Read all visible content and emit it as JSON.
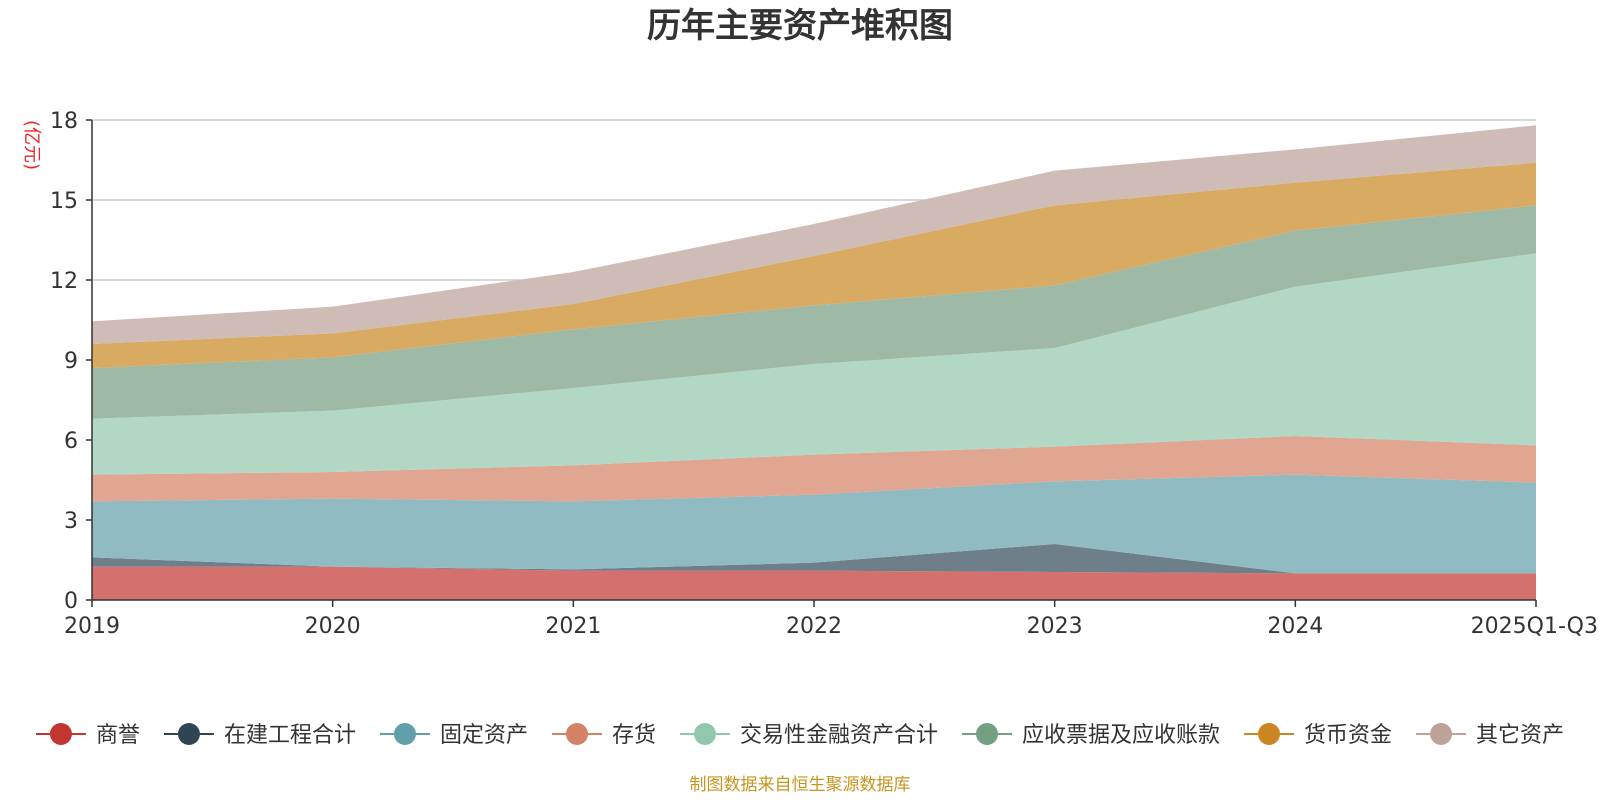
{
  "chart_data": {
    "type": "area",
    "stacked": true,
    "title": "历年主要资产堆积图",
    "ylabel": "(亿元)",
    "xlabel": "",
    "source": "制图数据来自恒生聚源数据库",
    "categories": [
      "2019",
      "2020",
      "2021",
      "2022",
      "2023",
      "2024",
      "2025Q1-Q3"
    ],
    "ylim": [
      0,
      18
    ],
    "yticks": [
      0,
      3,
      6,
      9,
      12,
      15,
      18
    ],
    "grid": true,
    "legend_position": "bottom",
    "series": [
      {
        "name": "商誉",
        "color": "#c23531",
        "fill": "#d4706d",
        "values": [
          1.25,
          1.25,
          1.1,
          1.1,
          1.05,
          1.0,
          1.0
        ]
      },
      {
        "name": "在建工程合计",
        "color": "#2f4554",
        "fill": "#6e7f8a",
        "values": [
          0.35,
          0.0,
          0.05,
          0.3,
          1.05,
          0.0,
          0.0
        ]
      },
      {
        "name": "固定资产",
        "color": "#61a0a8",
        "fill": "#90bbc2",
        "values": [
          2.1,
          2.55,
          2.55,
          2.55,
          2.35,
          3.7,
          3.4
        ]
      },
      {
        "name": "存货",
        "color": "#d48265",
        "fill": "#e1a692",
        "values": [
          1.0,
          1.0,
          1.35,
          1.5,
          1.3,
          1.45,
          1.4
        ]
      },
      {
        "name": "交易性金融资产合计",
        "color": "#91c7ae",
        "fill": "#b2d7c5",
        "values": [
          2.1,
          2.3,
          2.9,
          3.4,
          3.7,
          5.6,
          7.2
        ]
      },
      {
        "name": "应收票据及应收账款",
        "color": "#749f83",
        "fill": "#9eb9a5",
        "values": [
          1.9,
          2.0,
          2.2,
          2.2,
          2.35,
          2.1,
          1.8
        ]
      },
      {
        "name": "货币资金",
        "color": "#ca8622",
        "fill": "#d8aa62",
        "values": [
          0.9,
          0.9,
          0.95,
          1.85,
          3.0,
          1.8,
          1.6
        ]
      },
      {
        "name": "其它资产",
        "color": "#bda29a",
        "fill": "#d0bcb6",
        "values": [
          0.85,
          1.0,
          1.2,
          1.2,
          1.3,
          1.25,
          1.4
        ]
      }
    ]
  }
}
